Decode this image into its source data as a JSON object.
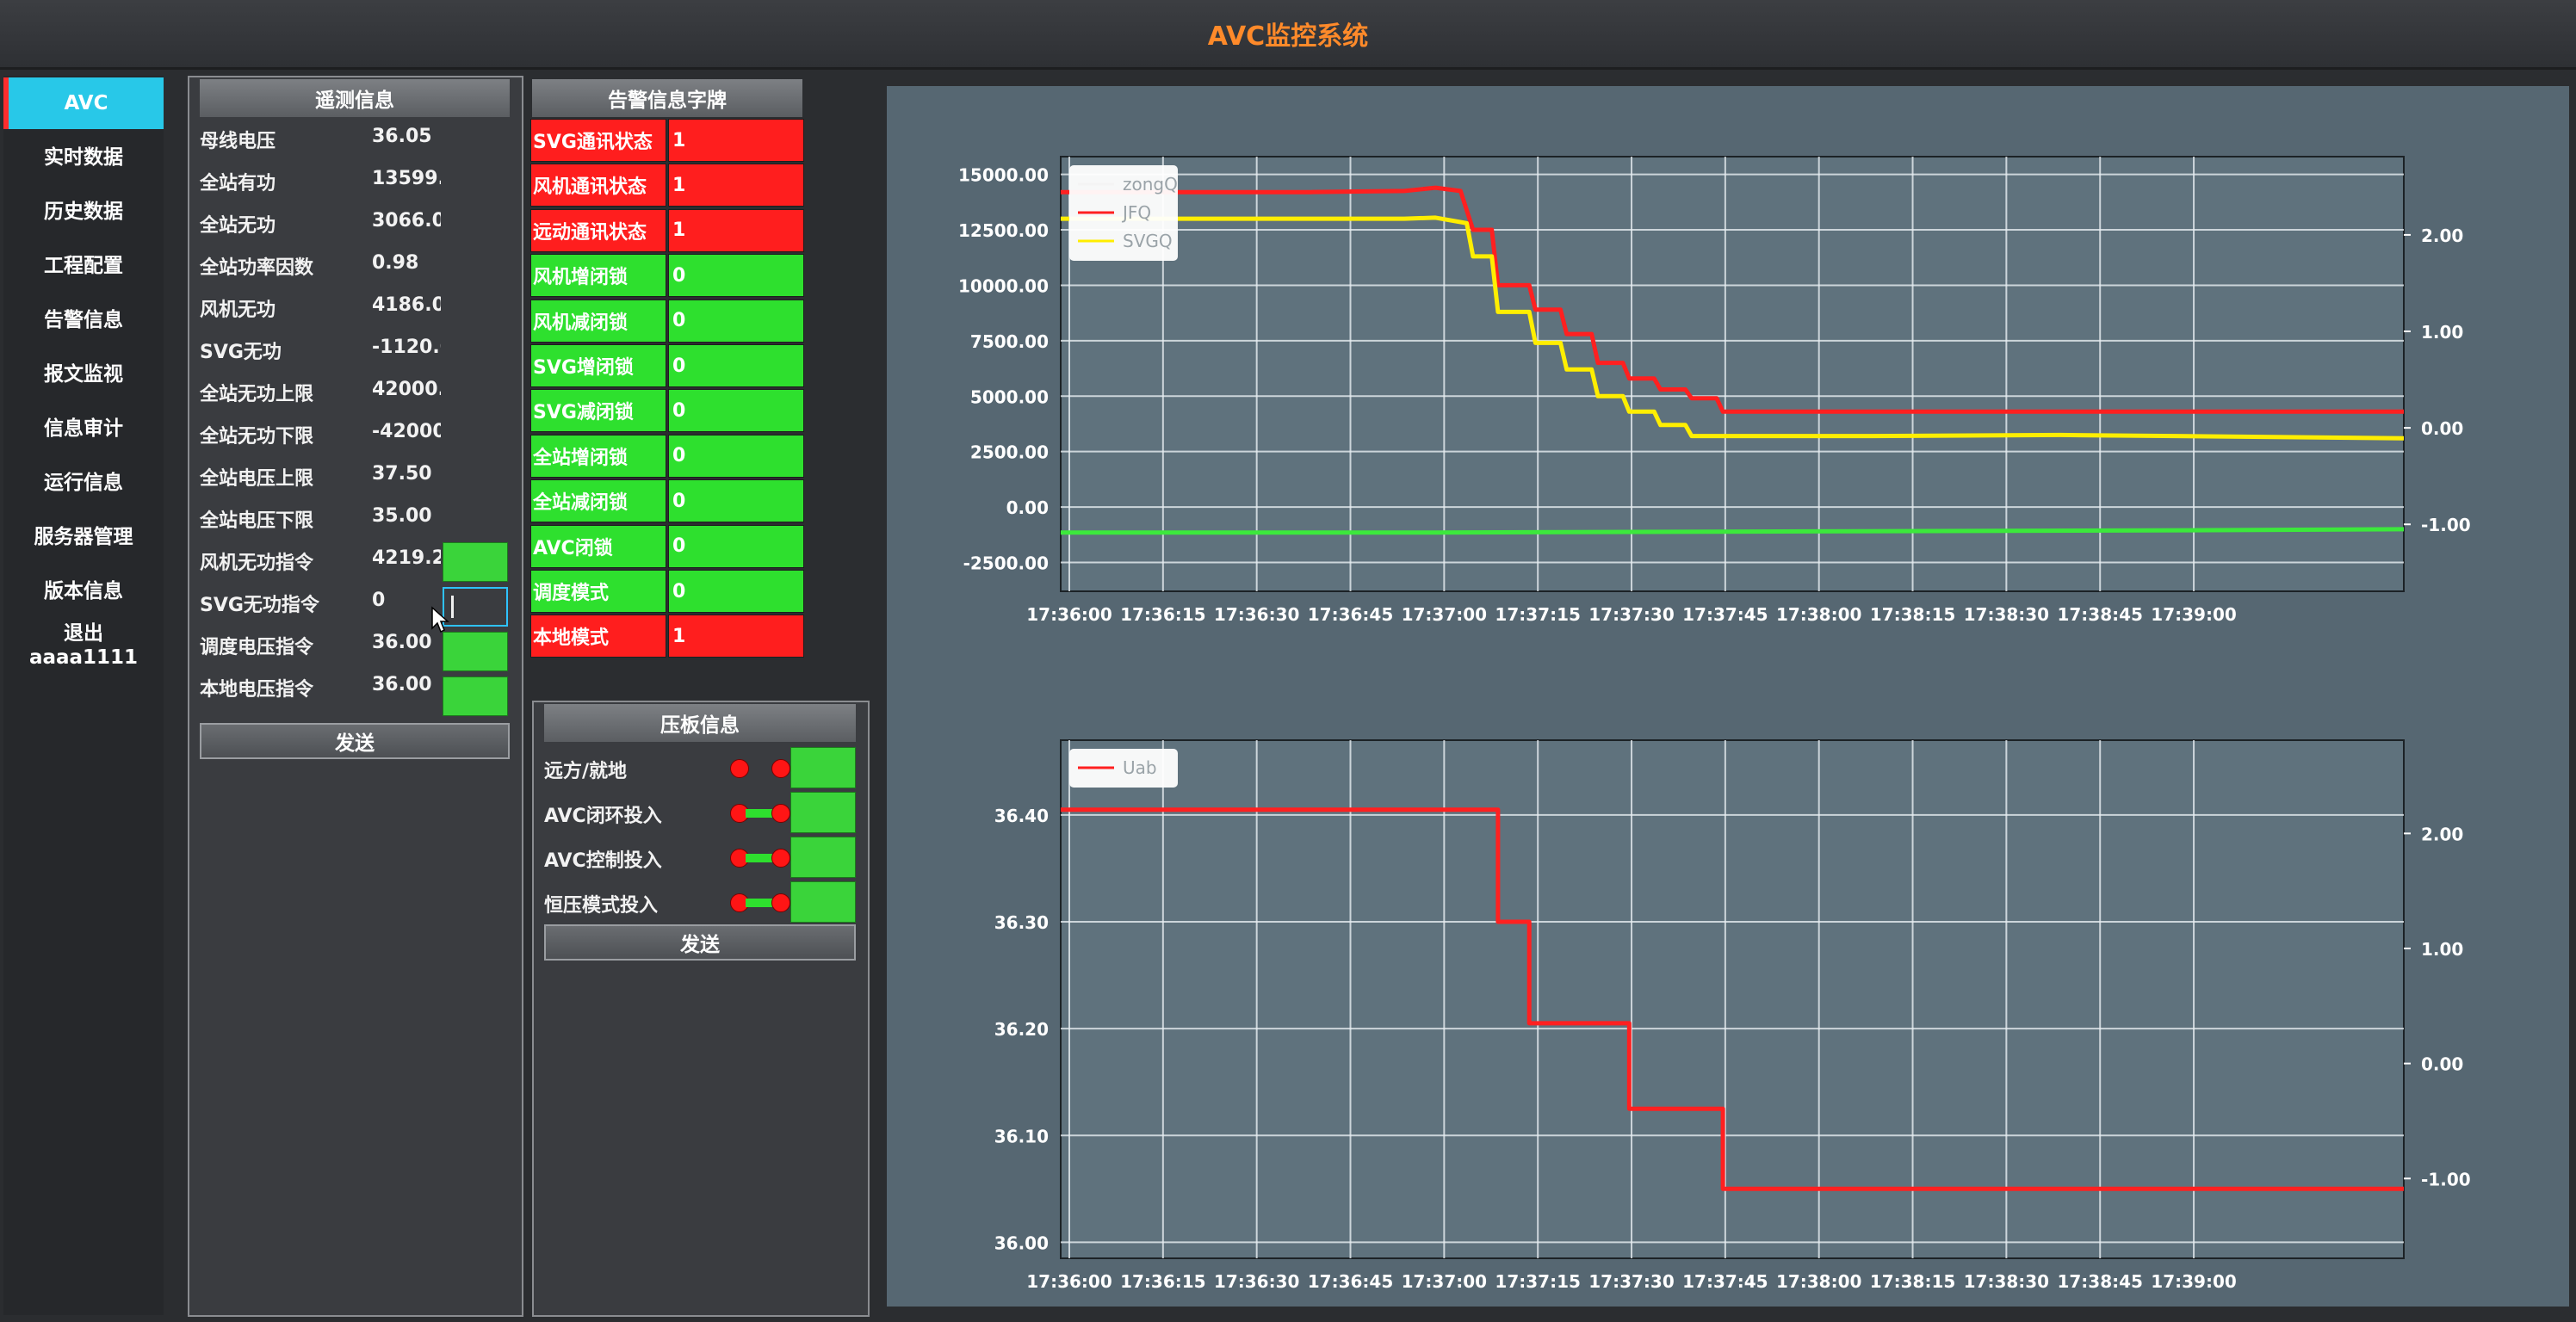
{
  "app": {
    "title": "AVC监控系统"
  },
  "sidebar": {
    "items": [
      {
        "label": "AVC",
        "active": true
      },
      {
        "label": "实时数据"
      },
      {
        "label": "历史数据"
      },
      {
        "label": "工程配置"
      },
      {
        "label": "告警信息"
      },
      {
        "label": "报文监视"
      },
      {
        "label": "信息审计"
      },
      {
        "label": "运行信息"
      },
      {
        "label": "服务器管理"
      },
      {
        "label": "版本信息"
      },
      {
        "label": "退出"
      }
    ],
    "user": "aaaa1111"
  },
  "telemetry": {
    "title": "遥测信息",
    "rows": [
      {
        "label": "母线电压",
        "value": "36.05"
      },
      {
        "label": "全站有功",
        "value": "13599."
      },
      {
        "label": "全站无功",
        "value": "3066.0"
      },
      {
        "label": "全站功率因数",
        "value": "0.98"
      },
      {
        "label": "风机无功",
        "value": "4186.0"
      },
      {
        "label": "SVG无功",
        "value": "-1120.0"
      },
      {
        "label": "全站无功上限",
        "value": "42000."
      },
      {
        "label": "全站无功下限",
        "value": "-42000"
      },
      {
        "label": "全站电压上限",
        "value": "37.50"
      },
      {
        "label": "全站电压下限",
        "value": "35.00"
      },
      {
        "label": "风机无功指令",
        "value": "4219.2"
      },
      {
        "label": "SVG无功指令",
        "value": "0"
      },
      {
        "label": "调度电压指令",
        "value": "36.00"
      },
      {
        "label": "本地电压指令",
        "value": "36.00"
      }
    ],
    "send_label": "发送"
  },
  "alarms": {
    "title": "告警信息字牌",
    "rows": [
      {
        "label": "SVG通讯状态",
        "value": "1",
        "status": "red"
      },
      {
        "label": "风机通讯状态",
        "value": "1",
        "status": "red"
      },
      {
        "label": "远动通讯状态",
        "value": "1",
        "status": "red"
      },
      {
        "label": "风机增闭锁",
        "value": "0",
        "status": "green"
      },
      {
        "label": "风机减闭锁",
        "value": "0",
        "status": "green"
      },
      {
        "label": "SVG增闭锁",
        "value": "0",
        "status": "green"
      },
      {
        "label": "SVG减闭锁",
        "value": "0",
        "status": "green"
      },
      {
        "label": "全站增闭锁",
        "value": "0",
        "status": "green"
      },
      {
        "label": "全站减闭锁",
        "value": "0",
        "status": "green"
      },
      {
        "label": "AVC闭锁",
        "value": "0",
        "status": "green"
      },
      {
        "label": "调度模式",
        "value": "0",
        "status": "green"
      },
      {
        "label": "本地模式",
        "value": "1",
        "status": "red"
      }
    ]
  },
  "plates": {
    "title": "压板信息",
    "rows": [
      {
        "label": "远方/就地",
        "state": "off"
      },
      {
        "label": "AVC闭环投入",
        "state": "on"
      },
      {
        "label": "AVC控制投入",
        "state": "on"
      },
      {
        "label": "恒压模式投入",
        "state": "on"
      }
    ],
    "send_label": "发送"
  },
  "colors": {
    "zongQ": "#f4f4f4",
    "JFQ": "#ff2020",
    "SVGQ": "#ffee00",
    "SVGQ_plot": "#3ce83c",
    "Uab": "#ff2020",
    "chart_bg": "#566772",
    "plot_bg": "#5f727d"
  },
  "chart_data": [
    {
      "type": "line",
      "x_ticks": [
        "17:36:00",
        "17:36:15",
        "17:36:30",
        "17:36:45",
        "17:37:00",
        "17:37:15",
        "17:37:30",
        "17:37:45",
        "17:38:00",
        "17:38:15",
        "17:38:30",
        "17:38:45",
        "17:39:00"
      ],
      "x_range_s": [
        0,
        215
      ],
      "ylim": [
        -3800,
        15800
      ],
      "y_ticks": [
        "15000.00",
        "12500.00",
        "10000.00",
        "7500.00",
        "5000.00",
        "2500.00",
        "0.00",
        "-2500.00"
      ],
      "y_tick_values": [
        15000,
        12500,
        10000,
        7500,
        5000,
        2500,
        0,
        -2500
      ],
      "y2_ticks": [
        "2.00",
        "1.00",
        "0.00",
        "-1.00"
      ],
      "legend": {
        "placement": "top-left",
        "entries": [
          "zongQ",
          "JFQ",
          "SVGQ"
        ]
      },
      "grid": true,
      "series": [
        {
          "name": "JFQ",
          "color_key": "JFQ",
          "points": [
            [
              0,
              14200
            ],
            [
              40,
              14200
            ],
            [
              55,
              14250
            ],
            [
              60,
              14400
            ],
            [
              64,
              14250
            ],
            [
              66,
              12500
            ],
            [
              69,
              12500
            ],
            [
              70,
              10000
            ],
            [
              75,
              10000
            ],
            [
              76,
              8900
            ],
            [
              80,
              8900
            ],
            [
              81,
              7800
            ],
            [
              85,
              7800
            ],
            [
              86,
              6500
            ],
            [
              90,
              6500
            ],
            [
              91,
              5800
            ],
            [
              95,
              5800
            ],
            [
              96,
              5300
            ],
            [
              100,
              5300
            ],
            [
              101,
              4900
            ],
            [
              105,
              4900
            ],
            [
              106,
              4300
            ],
            [
              215,
              4300
            ]
          ]
        },
        {
          "name": "SVGQ",
          "color_key": "SVGQ",
          "points": [
            [
              0,
              13000
            ],
            [
              55,
              13000
            ],
            [
              60,
              13050
            ],
            [
              65,
              12800
            ],
            [
              66,
              11300
            ],
            [
              69,
              11300
            ],
            [
              70,
              8800
            ],
            [
              75,
              8800
            ],
            [
              76,
              7400
            ],
            [
              80,
              7400
            ],
            [
              81,
              6200
            ],
            [
              85,
              6200
            ],
            [
              86,
              5000
            ],
            [
              90,
              5000
            ],
            [
              91,
              4300
            ],
            [
              95,
              4300
            ],
            [
              96,
              3700
            ],
            [
              100,
              3700
            ],
            [
              101,
              3200
            ],
            [
              130,
              3200
            ],
            [
              160,
              3250
            ],
            [
              215,
              3100
            ]
          ]
        },
        {
          "name": "SVGQ_plot",
          "color_key": "SVGQ_plot",
          "points": [
            [
              0,
              -1150
            ],
            [
              60,
              -1150
            ],
            [
              120,
              -1100
            ],
            [
              180,
              -1050
            ],
            [
              215,
              -1000
            ]
          ]
        }
      ]
    },
    {
      "type": "line",
      "x_ticks": [
        "17:36:00",
        "17:36:15",
        "17:36:30",
        "17:36:45",
        "17:37:00",
        "17:37:15",
        "17:37:30",
        "17:37:45",
        "17:38:00",
        "17:38:15",
        "17:38:30",
        "17:38:45",
        "17:39:00"
      ],
      "x_range_s": [
        0,
        215
      ],
      "ylim": [
        35.985,
        36.47
      ],
      "y_ticks": [
        "36.40",
        "36.30",
        "36.20",
        "36.10",
        "36.00"
      ],
      "y_tick_values": [
        36.4,
        36.3,
        36.2,
        36.1,
        36.0
      ],
      "y2_ticks": [
        "2.00",
        "1.00",
        "0.00",
        "-1.00"
      ],
      "legend": {
        "placement": "top-left",
        "entries": [
          "Uab"
        ]
      },
      "grid": true,
      "series": [
        {
          "name": "Uab",
          "color_key": "Uab",
          "points": [
            [
              0,
              36.405
            ],
            [
              70,
              36.405
            ],
            [
              70,
              36.3
            ],
            [
              75,
              36.3
            ],
            [
              75,
              36.205
            ],
            [
              91,
              36.205
            ],
            [
              91,
              36.125
            ],
            [
              106,
              36.125
            ],
            [
              106,
              36.05
            ],
            [
              215,
              36.05
            ]
          ]
        }
      ]
    }
  ]
}
